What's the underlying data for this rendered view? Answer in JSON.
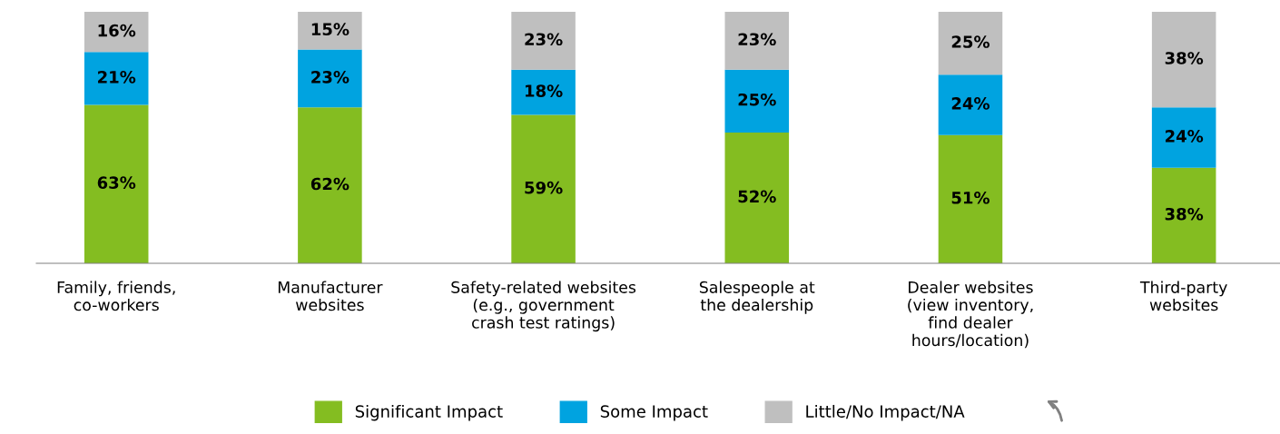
{
  "chart_data": {
    "type": "bar",
    "stacked": true,
    "legend": "bottom",
    "categories": [
      "Family, friends,\nco-workers",
      "Manufacturer\nwebsites",
      "Safety-related websites\n(e.g., government\ncrash test ratings)",
      "Salespeople at\nthe dealership",
      "Dealer websites\n(view inventory,\nfind dealer\nhours/location)",
      "Third-party\nwebsites"
    ],
    "series": [
      {
        "name": "Significant Impact",
        "color": "#84bd21",
        "values": [
          63,
          62,
          59,
          52,
          51,
          38
        ],
        "value_labels": [
          "63%",
          "62%",
          "59%",
          "52%",
          "51%",
          "38%"
        ]
      },
      {
        "name": "Some Impact",
        "color": "#00a3e0",
        "values": [
          21,
          23,
          18,
          25,
          24,
          24
        ],
        "value_labels": [
          "21%",
          "23%",
          "18%",
          "25%",
          "24%",
          "24%"
        ]
      },
      {
        "name": "Little/No Impact/NA",
        "color": "#bfbfbf",
        "values": [
          16,
          15,
          23,
          23,
          25,
          38
        ],
        "value_labels": [
          "16%",
          "15%",
          "23%",
          "23%",
          "25%",
          "38%"
        ]
      }
    ]
  }
}
